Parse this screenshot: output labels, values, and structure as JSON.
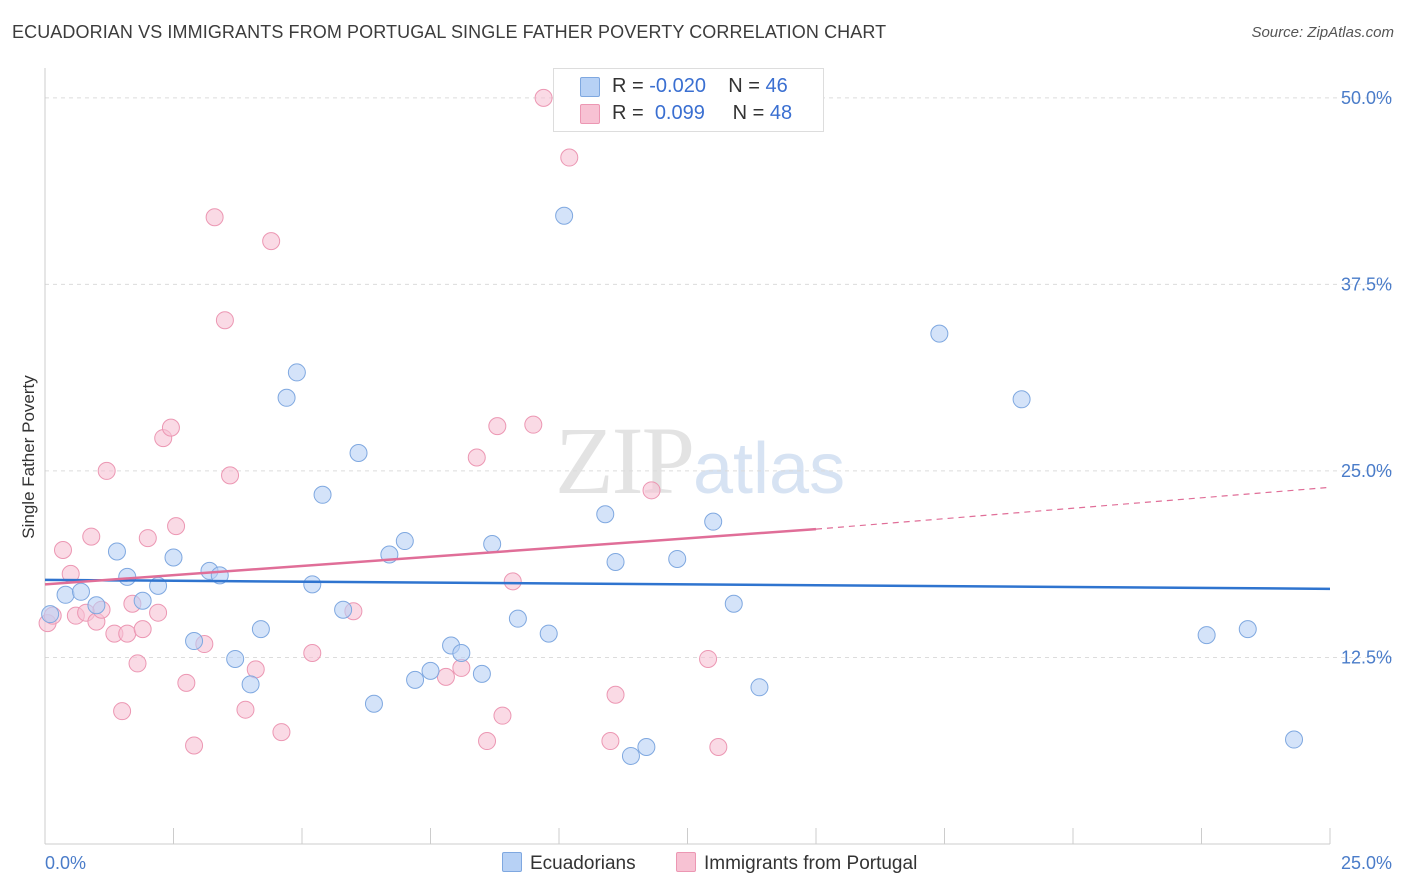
{
  "title": "ECUADORIAN VS IMMIGRANTS FROM PORTUGAL SINGLE FATHER POVERTY CORRELATION CHART",
  "source": "Source: ZipAtlas.com",
  "watermark": {
    "zip": "ZIP",
    "atlas": "atlas"
  },
  "legend": {
    "r_label": "R =",
    "n_label": "N =",
    "rows": [
      {
        "r": "-0.020",
        "n": "46"
      },
      {
        "r": "0.099",
        "n": "48"
      }
    ]
  },
  "bottom_legend": [
    "Ecuadorians",
    "Immigrants from Portugal"
  ],
  "chart_data": {
    "type": "scatter",
    "ylabel": "Single Father Poverty",
    "xlim": [
      0,
      25
    ],
    "ylim": [
      0,
      52
    ],
    "x_tick_labels": [
      "0.0%",
      "25.0%"
    ],
    "y_ticks": [
      12.5,
      25.0,
      37.5,
      50.0
    ],
    "y_tick_labels": [
      "12.5%",
      "25.0%",
      "37.5%",
      "50.0%"
    ],
    "colors": {
      "ecuadorians_fill": "#b7d1f5",
      "ecuadorians_stroke": "#7fa8e0",
      "ecuadorians_line": "#2f74cf",
      "portugal_fill": "#f7c2d3",
      "portugal_stroke": "#ec97b3",
      "portugal_line": "#e06e98"
    },
    "series": [
      {
        "name": "Ecuadorians",
        "points": [
          [
            0.1,
            15.4
          ],
          [
            0.4,
            16.7
          ],
          [
            0.7,
            16.9
          ],
          [
            1.0,
            16.0
          ],
          [
            1.4,
            19.6
          ],
          [
            1.6,
            17.9
          ],
          [
            1.9,
            16.3
          ],
          [
            2.2,
            17.3
          ],
          [
            2.5,
            19.2
          ],
          [
            2.9,
            13.6
          ],
          [
            3.2,
            18.3
          ],
          [
            3.4,
            18.0
          ],
          [
            3.7,
            12.4
          ],
          [
            4.0,
            10.7
          ],
          [
            4.2,
            14.4
          ],
          [
            4.7,
            29.9
          ],
          [
            4.9,
            31.6
          ],
          [
            5.2,
            17.4
          ],
          [
            5.4,
            23.4
          ],
          [
            5.8,
            15.7
          ],
          [
            6.1,
            26.2
          ],
          [
            6.4,
            9.4
          ],
          [
            6.7,
            19.4
          ],
          [
            7.0,
            20.3
          ],
          [
            7.2,
            11.0
          ],
          [
            7.5,
            11.6
          ],
          [
            7.9,
            13.3
          ],
          [
            8.1,
            12.8
          ],
          [
            8.5,
            11.4
          ],
          [
            8.7,
            20.1
          ],
          [
            9.2,
            15.1
          ],
          [
            9.8,
            14.1
          ],
          [
            10.1,
            42.1
          ],
          [
            10.9,
            22.1
          ],
          [
            11.1,
            18.9
          ],
          [
            11.4,
            5.9
          ],
          [
            11.7,
            6.5
          ],
          [
            12.3,
            19.1
          ],
          [
            13.0,
            21.6
          ],
          [
            13.4,
            16.1
          ],
          [
            13.9,
            10.5
          ],
          [
            17.4,
            34.2
          ],
          [
            19.0,
            29.8
          ],
          [
            22.6,
            14.0
          ],
          [
            23.4,
            14.4
          ],
          [
            24.3,
            7.0
          ]
        ],
        "trend": [
          [
            0,
            17.7
          ],
          [
            25,
            17.1
          ]
        ]
      },
      {
        "name": "Immigrants from Portugal",
        "points": [
          [
            0.05,
            14.8
          ],
          [
            0.15,
            15.3
          ],
          [
            0.35,
            19.7
          ],
          [
            0.5,
            18.1
          ],
          [
            0.6,
            15.3
          ],
          [
            0.8,
            15.5
          ],
          [
            0.9,
            20.6
          ],
          [
            1.0,
            14.9
          ],
          [
            1.1,
            15.7
          ],
          [
            1.2,
            25.0
          ],
          [
            1.35,
            14.1
          ],
          [
            1.5,
            8.9
          ],
          [
            1.6,
            14.1
          ],
          [
            1.7,
            16.1
          ],
          [
            1.8,
            12.1
          ],
          [
            1.9,
            14.4
          ],
          [
            2.0,
            20.5
          ],
          [
            2.2,
            15.5
          ],
          [
            2.3,
            27.2
          ],
          [
            2.45,
            27.9
          ],
          [
            2.55,
            21.3
          ],
          [
            2.75,
            10.8
          ],
          [
            2.9,
            6.6
          ],
          [
            3.1,
            13.4
          ],
          [
            3.3,
            42.0
          ],
          [
            3.5,
            35.1
          ],
          [
            3.6,
            24.7
          ],
          [
            3.9,
            9.0
          ],
          [
            4.1,
            11.7
          ],
          [
            4.4,
            40.4
          ],
          [
            4.6,
            7.5
          ],
          [
            5.2,
            12.8
          ],
          [
            6.0,
            15.6
          ],
          [
            7.8,
            11.2
          ],
          [
            8.1,
            11.8
          ],
          [
            8.4,
            25.9
          ],
          [
            8.6,
            6.9
          ],
          [
            8.8,
            28.0
          ],
          [
            8.9,
            8.6
          ],
          [
            9.1,
            17.6
          ],
          [
            9.5,
            28.1
          ],
          [
            9.7,
            50.0
          ],
          [
            10.2,
            46.0
          ],
          [
            11.1,
            10.0
          ],
          [
            11.0,
            6.9
          ],
          [
            11.8,
            23.7
          ],
          [
            12.9,
            12.4
          ],
          [
            13.1,
            6.5
          ]
        ],
        "trend_solid": [
          [
            0,
            17.4
          ],
          [
            15,
            21.1
          ]
        ],
        "trend_dashed": [
          [
            15,
            21.1
          ],
          [
            25,
            23.9
          ]
        ]
      }
    ]
  }
}
